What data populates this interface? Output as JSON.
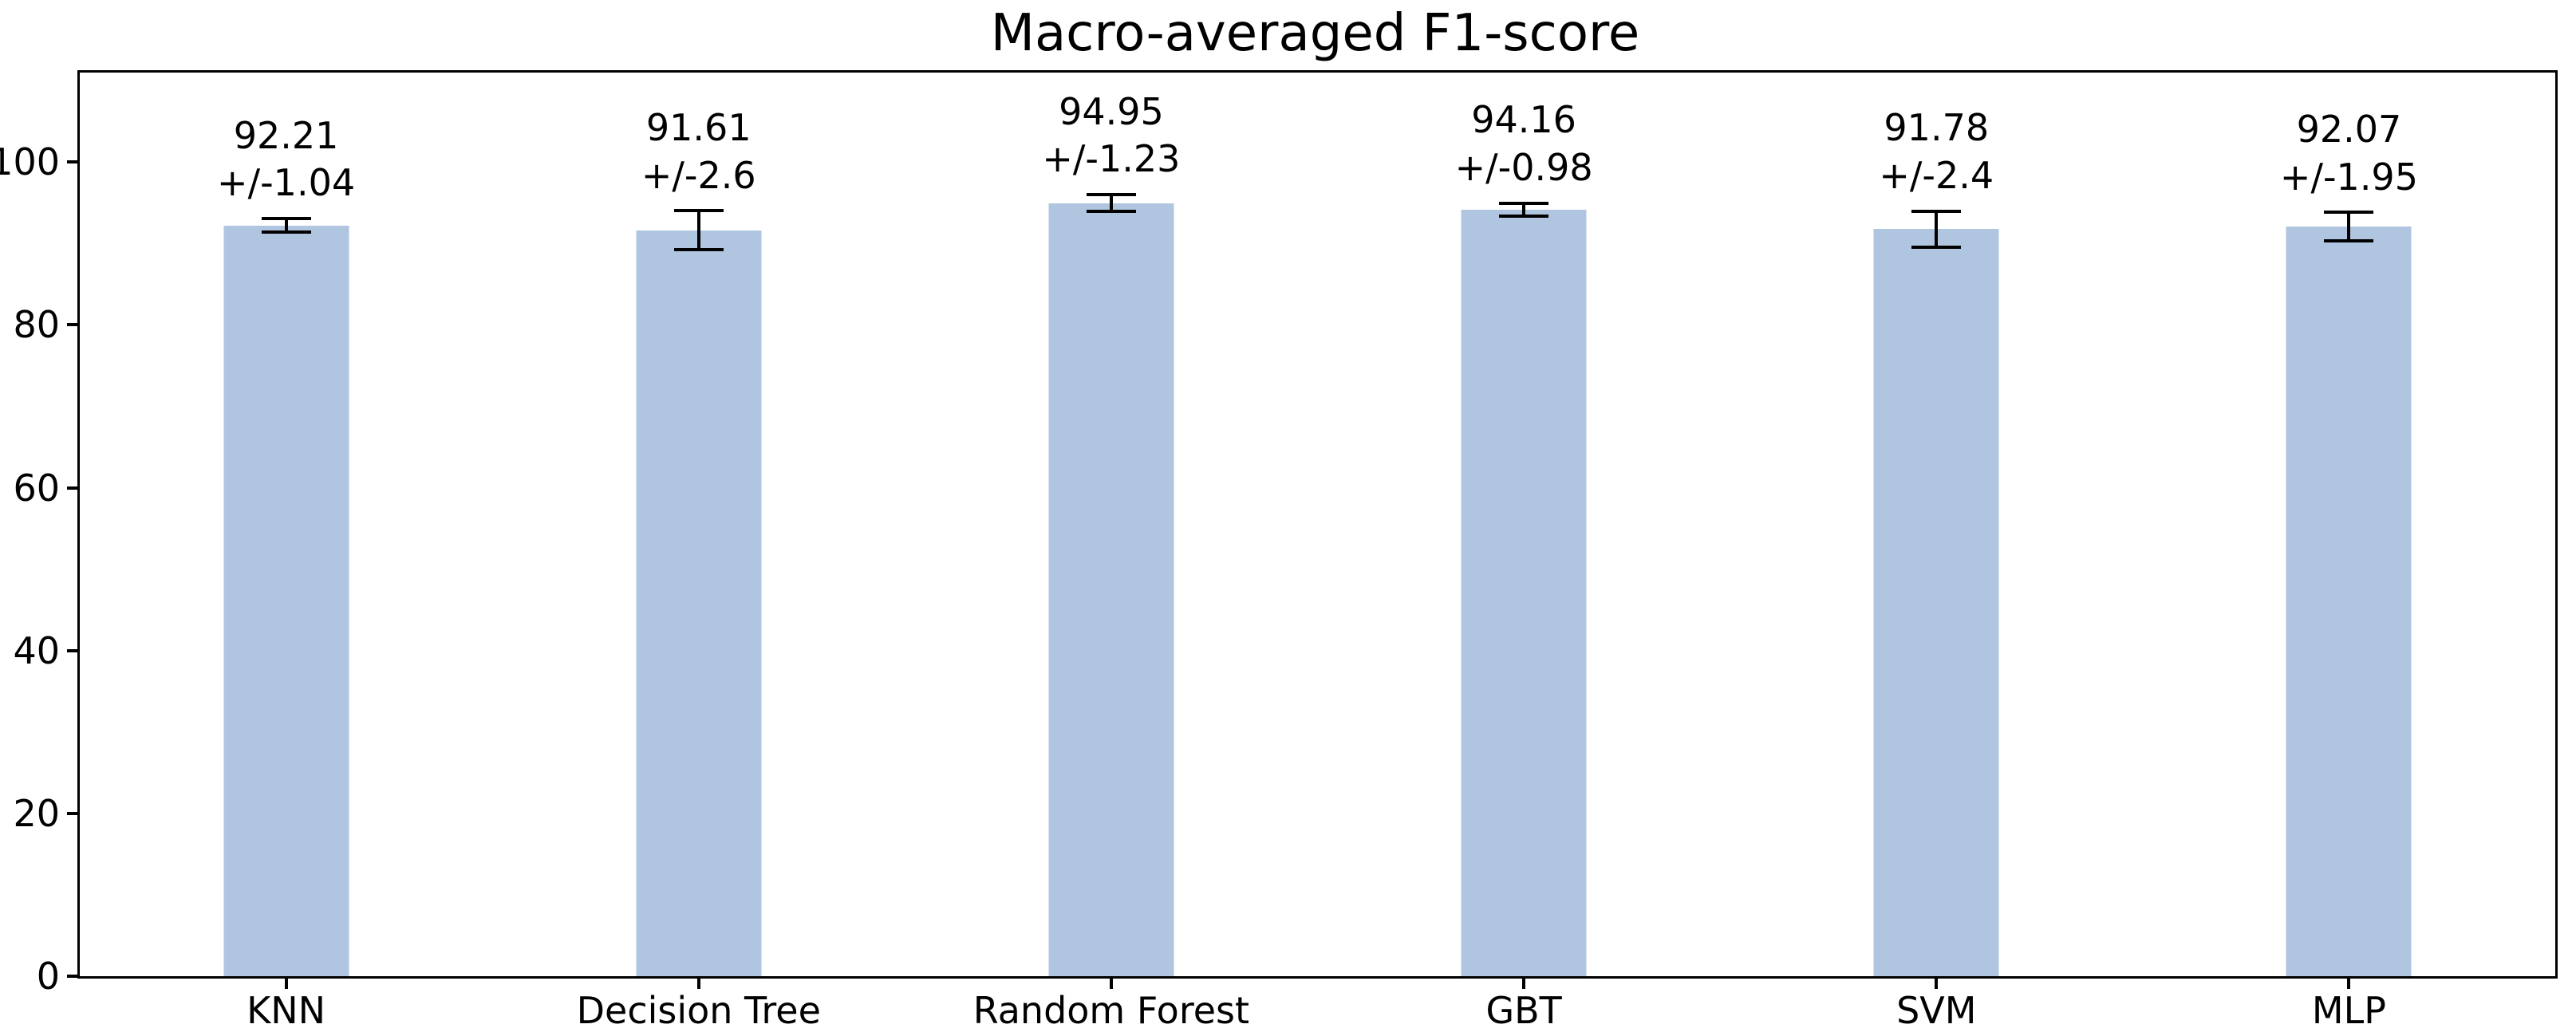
{
  "title": "Macro-averaged F1-score",
  "chart_data": {
    "type": "bar",
    "title": "Macro-averaged F1-score",
    "categories": [
      "KNN",
      "Decision Tree",
      "Random Forest",
      "GBT",
      "SVM",
      "MLP"
    ],
    "series": [
      {
        "name": "Macro-averaged F1-score",
        "values": [
          92.21,
          91.61,
          94.95,
          94.16,
          91.78,
          92.07
        ],
        "errors": [
          1.04,
          2.6,
          1.23,
          0.98,
          2.4,
          1.95
        ]
      }
    ],
    "bar_value_labels": [
      "92.21",
      "91.61",
      "94.95",
      "94.16",
      "91.78",
      "92.07"
    ],
    "bar_error_labels": [
      "+/-1.04",
      "+/-2.6",
      "+/-1.23",
      "+/-0.98",
      "+/-2.4",
      "+/-1.95"
    ],
    "xlabel": "",
    "ylabel": "",
    "yticks": [
      0,
      20,
      40,
      60,
      80,
      100
    ],
    "ylim": [
      0,
      111
    ],
    "grid": false,
    "legend_position": "none",
    "bar_color": "#b0c5e0",
    "error_bar_color": "#000000",
    "text_color": "#000000",
    "background_color": "#ffffff"
  }
}
